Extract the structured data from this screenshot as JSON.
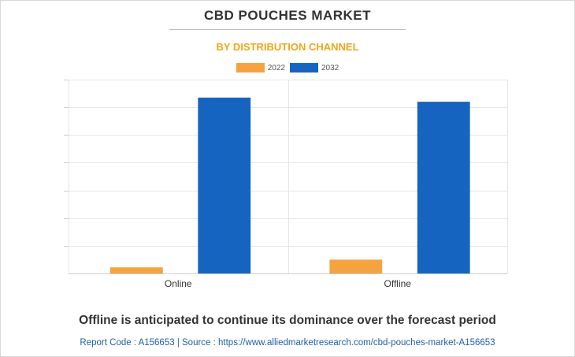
{
  "colors": {
    "y2022": "#f4a340",
    "y2032": "#1565c0",
    "subtitle": "#f2a51a",
    "source": "#1f5fa8"
  },
  "header": {
    "title": "CBD POUCHES MARKET",
    "subtitle": "BY DISTRIBUTION CHANNEL"
  },
  "chart_data": {
    "type": "bar",
    "title": "CBD POUCHES MARKET",
    "subtitle": "BY DISTRIBUTION CHANNEL",
    "categories": [
      "Online",
      "Offline"
    ],
    "series": [
      {
        "name": "2022",
        "values": [
          2.2,
          5.0
        ]
      },
      {
        "name": "2032",
        "values": [
          63.5,
          62.0
        ]
      }
    ],
    "xlabel": "",
    "ylabel": "",
    "ylim": [
      0,
      70
    ],
    "y_tick_count": 7,
    "grid": true,
    "legend_position": "top"
  },
  "footer": {
    "headline": "Offline is anticipated to continue its dominance over the forecast period",
    "source": "Report Code : A156653  |  Source : https://www.alliedmarketresearch.com/cbd-pouches-market-A156653"
  }
}
